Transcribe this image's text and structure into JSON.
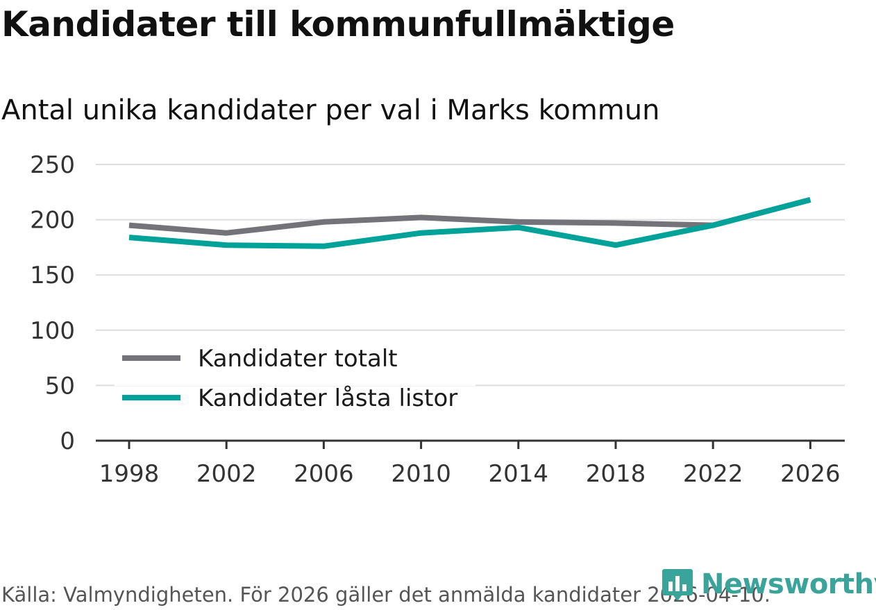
{
  "header": {
    "title": "Kandidater till kommunfullmäktige",
    "subtitle": "Antal unika kandidater per val i Marks kommun"
  },
  "footer": {
    "source": "Källa: Valmyndigheten. För 2026 gäller det anmälda kandidater 2026-04-10.",
    "brand": "Newsworthy"
  },
  "colors": {
    "grid": "#dddddd",
    "axis": "#333333",
    "brand": "#3aa39a"
  },
  "chart_data": {
    "type": "line",
    "title": "Kandidater till kommunfullmäktige",
    "subtitle": "Antal unika kandidater per val i Marks kommun",
    "x": [
      "1998",
      "2002",
      "2006",
      "2010",
      "2014",
      "2018",
      "2022",
      "2026"
    ],
    "ylim": [
      0,
      250
    ],
    "yticks": [
      0,
      50,
      100,
      150,
      200,
      250
    ],
    "grid": true,
    "legend_position": "bottom-left",
    "series": [
      {
        "name": "Kandidater totalt",
        "color": "#75737a",
        "values": [
          195,
          188,
          198,
          202,
          198,
          197,
          195,
          218
        ]
      },
      {
        "name": "Kandidater låsta listor",
        "color": "#00a29a",
        "values": [
          184,
          177,
          176,
          188,
          193,
          177,
          195,
          218
        ]
      }
    ]
  }
}
